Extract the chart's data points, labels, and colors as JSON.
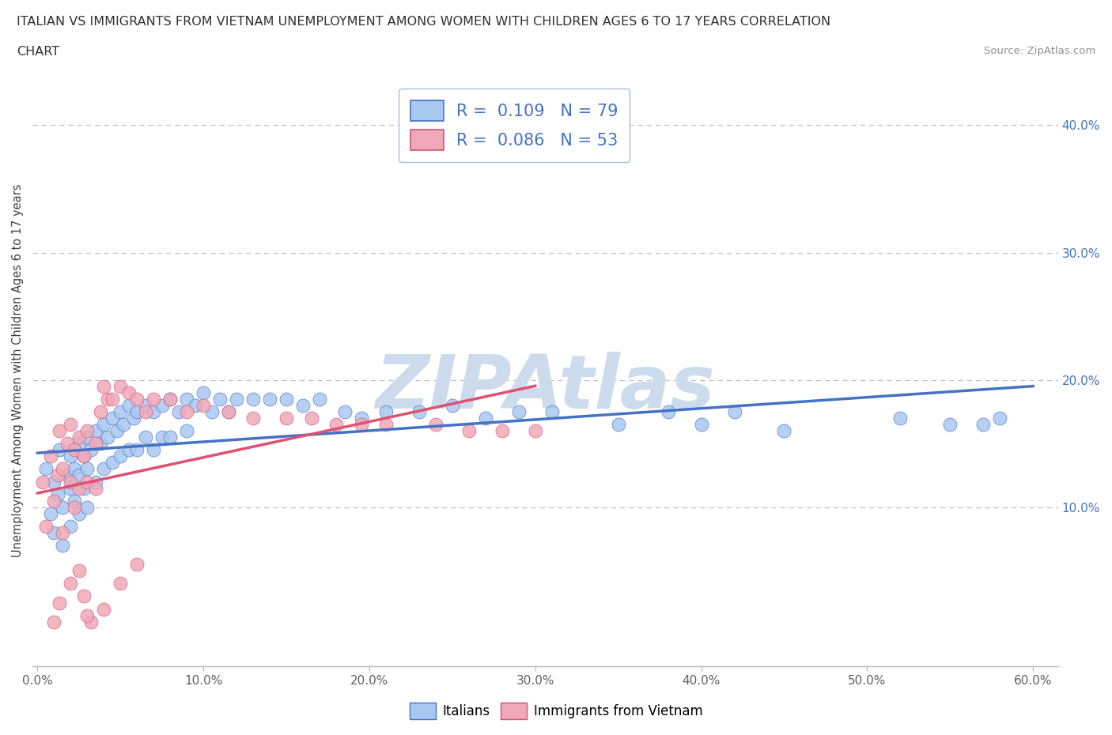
{
  "title_line1": "ITALIAN VS IMMIGRANTS FROM VIETNAM UNEMPLOYMENT AMONG WOMEN WITH CHILDREN AGES 6 TO 17 YEARS CORRELATION",
  "title_line2": "CHART",
  "source_text": "Source: ZipAtlas.com",
  "ylabel": "Unemployment Among Women with Children Ages 6 to 17 years",
  "xlim": [
    -0.003,
    0.615
  ],
  "ylim": [
    -0.025,
    0.44
  ],
  "xticks": [
    0.0,
    0.1,
    0.2,
    0.3,
    0.4,
    0.5,
    0.6
  ],
  "yticks_right": [
    0.1,
    0.2,
    0.3,
    0.4
  ],
  "ytick_labels_right": [
    "10.0%",
    "20.0%",
    "30.0%",
    "40.0%"
  ],
  "xtick_labels": [
    "0.0%",
    "10.0%",
    "20.0%",
    "30.0%",
    "40.0%",
    "50.0%",
    "60.0%"
  ],
  "blue_color": "#a8c8f0",
  "blue_edge_color": "#4472c4",
  "pink_color": "#f0a8b8",
  "pink_edge_color": "#cc5577",
  "blue_line_color": "#4472c4",
  "pink_line_color": "#e05070",
  "watermark_color": "#ccdcec",
  "legend_R1": "R =  0.109",
  "legend_N1": "N = 79",
  "legend_R2": "R =  0.086",
  "legend_N2": "N = 53",
  "legend_text_color": "#4472c4",
  "grid_color": "#c0c0c0",
  "title_color": "#303030",
  "blue_scatter_x": [
    0.005,
    0.008,
    0.01,
    0.01,
    0.012,
    0.013,
    0.015,
    0.015,
    0.018,
    0.02,
    0.02,
    0.02,
    0.022,
    0.022,
    0.025,
    0.025,
    0.025,
    0.028,
    0.028,
    0.03,
    0.03,
    0.03,
    0.032,
    0.035,
    0.035,
    0.038,
    0.04,
    0.04,
    0.042,
    0.045,
    0.045,
    0.048,
    0.05,
    0.05,
    0.052,
    0.055,
    0.055,
    0.058,
    0.06,
    0.06,
    0.065,
    0.065,
    0.07,
    0.07,
    0.075,
    0.075,
    0.08,
    0.08,
    0.085,
    0.09,
    0.09,
    0.095,
    0.1,
    0.105,
    0.11,
    0.115,
    0.12,
    0.13,
    0.14,
    0.15,
    0.16,
    0.17,
    0.185,
    0.195,
    0.21,
    0.23,
    0.25,
    0.27,
    0.29,
    0.31,
    0.35,
    0.38,
    0.4,
    0.42,
    0.45,
    0.52,
    0.55,
    0.57,
    0.58
  ],
  "blue_scatter_y": [
    0.13,
    0.095,
    0.12,
    0.08,
    0.11,
    0.145,
    0.1,
    0.07,
    0.125,
    0.14,
    0.115,
    0.085,
    0.13,
    0.105,
    0.15,
    0.125,
    0.095,
    0.14,
    0.115,
    0.155,
    0.13,
    0.1,
    0.145,
    0.16,
    0.12,
    0.15,
    0.165,
    0.13,
    0.155,
    0.17,
    0.135,
    0.16,
    0.175,
    0.14,
    0.165,
    0.18,
    0.145,
    0.17,
    0.175,
    0.145,
    0.18,
    0.155,
    0.175,
    0.145,
    0.18,
    0.155,
    0.185,
    0.155,
    0.175,
    0.185,
    0.16,
    0.18,
    0.19,
    0.175,
    0.185,
    0.175,
    0.185,
    0.185,
    0.185,
    0.185,
    0.18,
    0.185,
    0.175,
    0.17,
    0.175,
    0.175,
    0.18,
    0.17,
    0.175,
    0.175,
    0.165,
    0.175,
    0.165,
    0.175,
    0.16,
    0.17,
    0.165,
    0.165,
    0.17
  ],
  "pink_scatter_x": [
    0.003,
    0.005,
    0.008,
    0.01,
    0.012,
    0.013,
    0.015,
    0.015,
    0.018,
    0.02,
    0.02,
    0.022,
    0.022,
    0.025,
    0.025,
    0.028,
    0.03,
    0.03,
    0.035,
    0.035,
    0.038,
    0.04,
    0.042,
    0.045,
    0.05,
    0.055,
    0.06,
    0.065,
    0.07,
    0.08,
    0.09,
    0.1,
    0.115,
    0.13,
    0.15,
    0.165,
    0.18,
    0.195,
    0.21,
    0.24,
    0.26,
    0.28,
    0.3,
    0.025,
    0.028,
    0.032,
    0.04,
    0.05,
    0.06,
    0.01,
    0.013,
    0.02,
    0.03
  ],
  "pink_scatter_y": [
    0.12,
    0.085,
    0.14,
    0.105,
    0.125,
    0.16,
    0.13,
    0.08,
    0.15,
    0.165,
    0.12,
    0.145,
    0.1,
    0.155,
    0.115,
    0.14,
    0.16,
    0.12,
    0.15,
    0.115,
    0.175,
    0.195,
    0.185,
    0.185,
    0.195,
    0.19,
    0.185,
    0.175,
    0.185,
    0.185,
    0.175,
    0.18,
    0.175,
    0.17,
    0.17,
    0.17,
    0.165,
    0.165,
    0.165,
    0.165,
    0.16,
    0.16,
    0.16,
    0.05,
    0.03,
    0.01,
    0.02,
    0.04,
    0.055,
    0.01,
    0.025,
    0.04,
    0.015
  ]
}
